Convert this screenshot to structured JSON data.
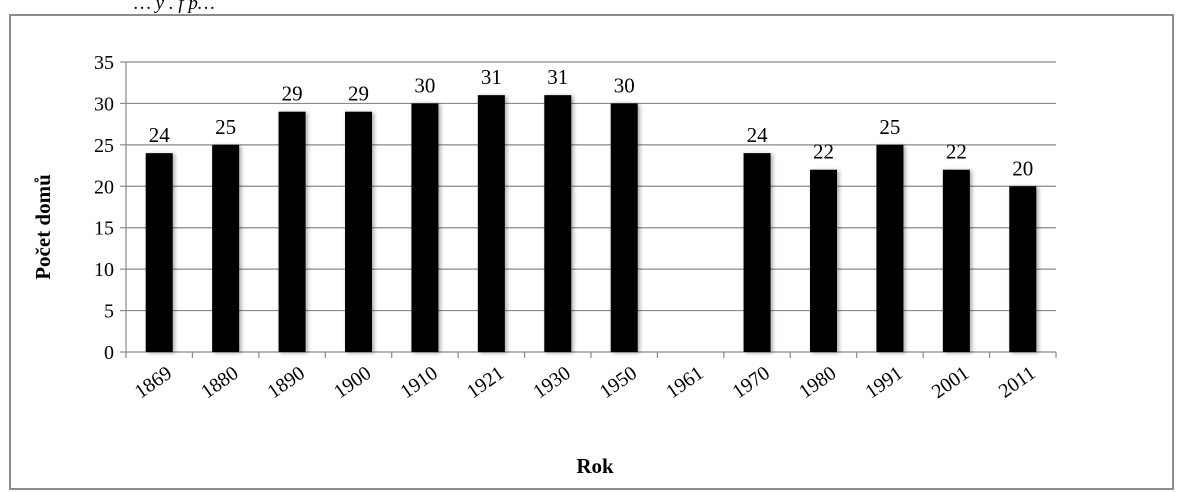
{
  "caption": "… y . f p…",
  "chart_data": {
    "type": "bar",
    "title": "",
    "xlabel": "Rok",
    "ylabel": "Počet domů",
    "ylim": [
      0,
      35
    ],
    "yticks": [
      0,
      5,
      10,
      15,
      20,
      25,
      30,
      35
    ],
    "grid": true,
    "legend": "none",
    "bar_color": "#000000",
    "categories": [
      "1869",
      "1880",
      "1890",
      "1900",
      "1910",
      "1921",
      "1930",
      "1950",
      "1961",
      "1970",
      "1980",
      "1991",
      "2001",
      "2011"
    ],
    "values": [
      24,
      25,
      29,
      29,
      30,
      31,
      31,
      30,
      null,
      24,
      22,
      25,
      22,
      20
    ],
    "data_labels": [
      "24",
      "25",
      "29",
      "29",
      "30",
      "31",
      "31",
      "30",
      "",
      "24",
      "22",
      "25",
      "22",
      "20"
    ]
  }
}
